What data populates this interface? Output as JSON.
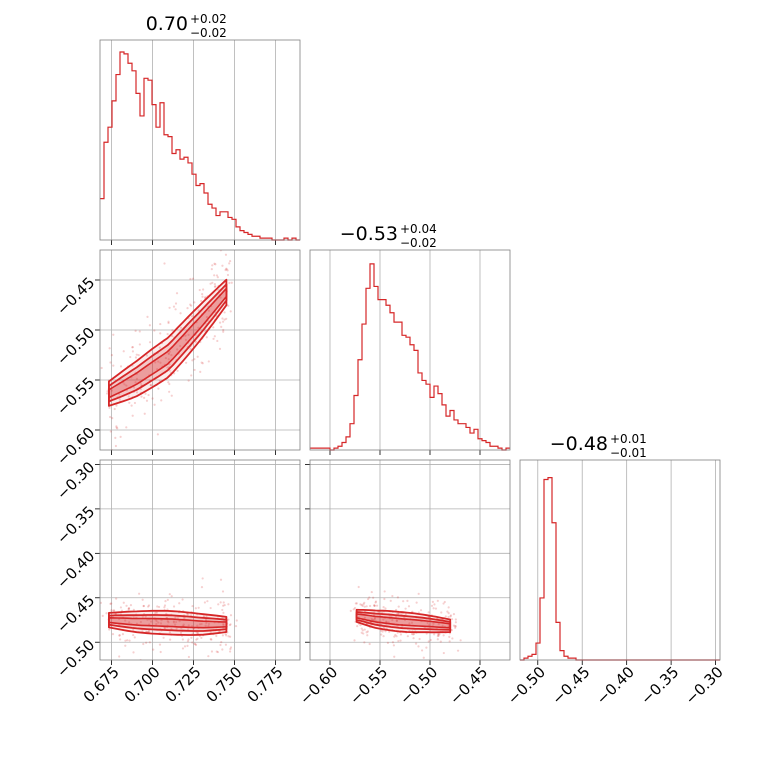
{
  "chart_data": {
    "type": "corner",
    "color": "#d62728",
    "grid": true,
    "titles": [
      {
        "value": "0.70",
        "plus": "+0.02",
        "minus": "−0.02"
      },
      {
        "value": "−0.53",
        "plus": "+0.04",
        "minus": "−0.02"
      },
      {
        "value": "−0.48",
        "plus": "+0.01",
        "minus": "−0.01"
      }
    ],
    "params": [
      {
        "range": [
          0.668,
          0.79
        ],
        "ticks": [
          0.675,
          0.7,
          0.725,
          0.75,
          0.775
        ],
        "tick_labels": [
          "0.675",
          "0.700",
          "0.725",
          "0.750",
          "0.775"
        ]
      },
      {
        "range": [
          -0.62,
          -0.42
        ],
        "ticks": [
          -0.6,
          -0.55,
          -0.5,
          -0.45
        ],
        "tick_labels": [
          "−0.60",
          "−0.55",
          "−0.50",
          "−0.45"
        ]
      },
      {
        "range": [
          -0.52,
          -0.295
        ],
        "ticks": [
          -0.5,
          -0.45,
          -0.4,
          -0.35,
          -0.3
        ],
        "tick_labels": [
          "−0.50",
          "−0.45",
          "−0.40",
          "−0.35",
          "−0.30"
        ]
      }
    ],
    "histograms": [
      {
        "bins": [
          0.668,
          0.79
        ],
        "heights": [
          0.22,
          0.52,
          0.6,
          0.74,
          0.88,
          1.0,
          0.99,
          0.94,
          0.9,
          0.78,
          0.66,
          0.86,
          0.85,
          0.72,
          0.6,
          0.73,
          0.56,
          0.55,
          0.46,
          0.48,
          0.43,
          0.44,
          0.41,
          0.35,
          0.29,
          0.3,
          0.25,
          0.19,
          0.17,
          0.13,
          0.15,
          0.15,
          0.12,
          0.11,
          0.07,
          0.05,
          0.04,
          0.03,
          0.02,
          0.02,
          0.01,
          0.01,
          0.01,
          0.0,
          0.0,
          0.0,
          0.01,
          0.0,
          0.01,
          0.0
        ]
      },
      {
        "bins": [
          -0.62,
          -0.42
        ],
        "heights": [
          0.01,
          0.01,
          0.01,
          0.01,
          0.01,
          0.0,
          0.01,
          0.02,
          0.04,
          0.07,
          0.14,
          0.29,
          0.48,
          0.67,
          0.86,
          0.99,
          0.87,
          0.8,
          0.8,
          0.77,
          0.73,
          0.68,
          0.68,
          0.61,
          0.6,
          0.56,
          0.53,
          0.41,
          0.37,
          0.35,
          0.28,
          0.34,
          0.3,
          0.24,
          0.18,
          0.21,
          0.16,
          0.14,
          0.14,
          0.12,
          0.09,
          0.11,
          0.06,
          0.05,
          0.04,
          0.02,
          0.02,
          0.01,
          0.0,
          0.01
        ]
      },
      {
        "bins": [
          -0.52,
          -0.295
        ],
        "heights": [
          0.0,
          0.01,
          0.02,
          0.03,
          0.09,
          0.33,
          0.96,
          0.97,
          0.73,
          0.2,
          0.05,
          0.02,
          0.01,
          0.01,
          0.0,
          0.0,
          0.0,
          0.0,
          0.0,
          0.0,
          0.0,
          0.0,
          0.0,
          0.0,
          0.0,
          0.0,
          0.0,
          0.0,
          0.0,
          0.0,
          0.0,
          0.0,
          0.0,
          0.0,
          0.0,
          0.0,
          0.0,
          0.0,
          0.0,
          0.0,
          0.0,
          0.0,
          0.0,
          0.0,
          0.0,
          0.0,
          0.0,
          0.0,
          0.0,
          0.0
        ]
      }
    ],
    "joint": [
      {
        "x_param": 0,
        "y_param": 1,
        "centerline": [
          [
            0.672,
            -0.565
          ],
          [
            0.69,
            -0.549
          ],
          [
            0.71,
            -0.527
          ],
          [
            0.73,
            -0.491
          ],
          [
            0.748,
            -0.457
          ]
        ],
        "width_y": 0.018
      },
      {
        "x_param": 0,
        "y_param": 2,
        "centerline": [
          [
            0.672,
            -0.475
          ],
          [
            0.69,
            -0.477
          ],
          [
            0.71,
            -0.478
          ],
          [
            0.73,
            -0.48
          ],
          [
            0.748,
            -0.48
          ]
        ],
        "width_y": 0.012
      },
      {
        "x_param": 1,
        "y_param": 2,
        "centerline": [
          [
            -0.575,
            -0.47
          ],
          [
            -0.555,
            -0.474
          ],
          [
            -0.53,
            -0.477
          ],
          [
            -0.505,
            -0.479
          ],
          [
            -0.475,
            -0.482
          ]
        ],
        "width_y": 0.01
      }
    ]
  }
}
